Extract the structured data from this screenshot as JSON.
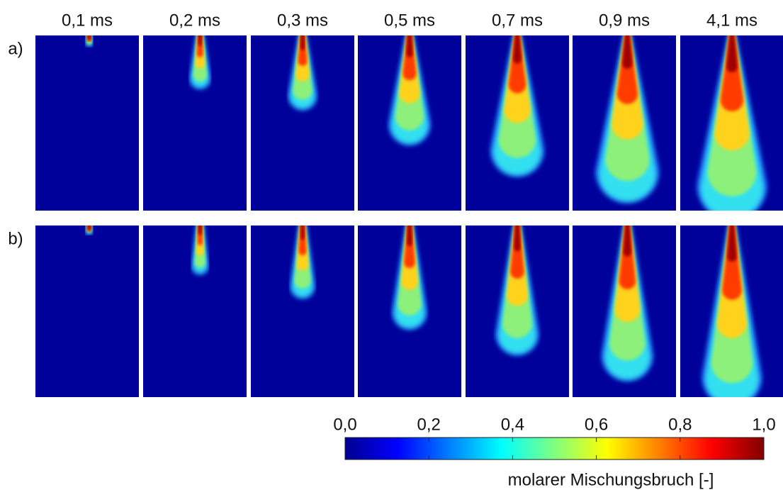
{
  "columns": [
    "0,1 ms",
    "0,2 ms",
    "0,3 ms",
    "0,5 ms",
    "0,7 ms",
    "0,9 ms",
    "4,1 ms"
  ],
  "rows": [
    "a)",
    "b)"
  ],
  "colorbar": {
    "lim": [
      0,
      1
    ],
    "ticks": [
      {
        "value": 0,
        "label": "0,0"
      },
      {
        "value": 0.2,
        "label": "0,2"
      },
      {
        "value": 0.4,
        "label": "0,4"
      },
      {
        "value": 0.6,
        "label": "0,6"
      },
      {
        "value": 0.8,
        "label": "0,8"
      },
      {
        "value": 1,
        "label": "1,0"
      }
    ],
    "label": "molarer Mischungsbruch [-]"
  }
}
